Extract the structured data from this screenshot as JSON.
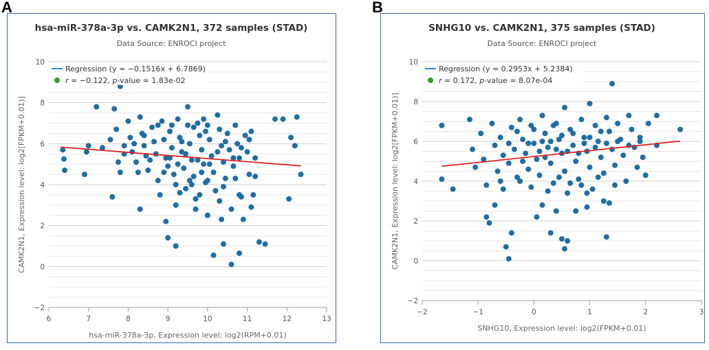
{
  "panels": [
    {
      "letter": "A",
      "chart_data": {
        "type": "scatter",
        "title": "hsa-miR-378a-3p vs. CAMK2N1, 372 samples (STAD)",
        "subtitle": "Data Source: ENROCI project",
        "xlabel": "hsa-miR-378a-3p, Expression level: log2(RPM+0.01)",
        "ylabel": "CAMK2N1, Expression level: log2[FPKM+0.01)]",
        "xlim": [
          6,
          13
        ],
        "ylim": [
          -2,
          10
        ],
        "xticks": [
          "6",
          "7",
          "8",
          "9",
          "10",
          "11",
          "12",
          "13"
        ],
        "yticks": [
          "−2",
          "0",
          "2",
          "4",
          "6",
          "8",
          "10"
        ],
        "legend": {
          "position": "top-left",
          "regression_label": "Regression (y = −0.1516x + 6.7869)",
          "r_prefix": "r",
          "r_suffix": " = −0.122, ",
          "p_prefix": "p",
          "p_suffix": "-value = 1.83e-02"
        },
        "regression": {
          "slope": -0.1516,
          "intercept": 6.7869,
          "x_range": [
            6.3,
            12.35
          ]
        },
        "colors": {
          "points": "#1f6ea3",
          "line": "#e02020",
          "legend_line": "#2b8ad3",
          "legend_dot": "#2ca02c",
          "grid": "#d8d8d8"
        },
        "points": [
          [
            6.35,
            5.7
          ],
          [
            6.38,
            5.25
          ],
          [
            6.4,
            4.7
          ],
          [
            6.9,
            4.5
          ],
          [
            6.95,
            5.6
          ],
          [
            7.2,
            7.8
          ],
          [
            7.6,
            3.4
          ],
          [
            7.65,
            7.7
          ],
          [
            7.8,
            8.8
          ],
          [
            7.7,
            6.7
          ],
          [
            7.75,
            5.1
          ],
          [
            7.8,
            4.6
          ],
          [
            7.9,
            5.5
          ],
          [
            8.0,
            7.1
          ],
          [
            8.05,
            6.3
          ],
          [
            8.1,
            5.6
          ],
          [
            8.2,
            5.1
          ],
          [
            8.25,
            4.6
          ],
          [
            8.3,
            2.8
          ],
          [
            8.3,
            7.3
          ],
          [
            8.35,
            6.5
          ],
          [
            8.4,
            5.9
          ],
          [
            8.45,
            5.4
          ],
          [
            8.5,
            4.7
          ],
          [
            8.6,
            6.8
          ],
          [
            8.65,
            6.1
          ],
          [
            8.7,
            5.5
          ],
          [
            8.75,
            4.2
          ],
          [
            8.8,
            3.5
          ],
          [
            8.85,
            7.1
          ],
          [
            8.9,
            6.2
          ],
          [
            8.95,
            5.3
          ],
          [
            8.95,
            2.2
          ],
          [
            9.0,
            1.4
          ],
          [
            9.0,
            4.9
          ],
          [
            9.05,
            6.6
          ],
          [
            9.1,
            5.8
          ],
          [
            9.15,
            4.5
          ],
          [
            9.2,
            3.0
          ],
          [
            9.2,
            1.0
          ],
          [
            9.25,
            7.2
          ],
          [
            9.3,
            6.3
          ],
          [
            9.35,
            5.6
          ],
          [
            9.4,
            4.8
          ],
          [
            9.45,
            3.8
          ],
          [
            9.5,
            7.8
          ],
          [
            9.5,
            6.9
          ],
          [
            9.55,
            6.0
          ],
          [
            9.6,
            5.2
          ],
          [
            9.65,
            4.4
          ],
          [
            9.7,
            3.3
          ],
          [
            9.7,
            2.8
          ],
          [
            9.75,
            7.0
          ],
          [
            9.8,
            6.4
          ],
          [
            9.85,
            5.7
          ],
          [
            9.9,
            5.0
          ],
          [
            9.95,
            4.1
          ],
          [
            10.0,
            6.9
          ],
          [
            10.0,
            2.5
          ],
          [
            10.05,
            6.2
          ],
          [
            10.1,
            5.4
          ],
          [
            10.15,
            4.6
          ],
          [
            10.15,
            0.55
          ],
          [
            10.2,
            3.7
          ],
          [
            10.25,
            7.4
          ],
          [
            10.3,
            6.7
          ],
          [
            10.35,
            5.9
          ],
          [
            10.35,
            2.3
          ],
          [
            10.4,
            5.1
          ],
          [
            10.4,
            1.1
          ],
          [
            10.45,
            4.3
          ],
          [
            10.5,
            6.5
          ],
          [
            10.55,
            5.7
          ],
          [
            10.6,
            2.8
          ],
          [
            10.6,
            0.1
          ],
          [
            10.65,
            4.9
          ],
          [
            10.7,
            6.9
          ],
          [
            10.75,
            6.0
          ],
          [
            10.8,
            5.3
          ],
          [
            10.8,
            0.65
          ],
          [
            10.85,
            3.4
          ],
          [
            10.9,
            2.3
          ],
          [
            10.95,
            6.4
          ],
          [
            11.0,
            5.6
          ],
          [
            11.05,
            4.5
          ],
          [
            11.1,
            6.6
          ],
          [
            11.15,
            3.5
          ],
          [
            11.2,
            5.3
          ],
          [
            11.3,
            1.2
          ],
          [
            11.45,
            1.1
          ],
          [
            11.7,
            7.2
          ],
          [
            11.9,
            7.2
          ],
          [
            12.05,
            3.3
          ],
          [
            12.1,
            6.3
          ],
          [
            12.2,
            5.9
          ],
          [
            12.25,
            7.3
          ],
          [
            12.35,
            4.5
          ],
          [
            7.55,
            6.2
          ],
          [
            8.15,
            6.0
          ],
          [
            8.55,
            5.2
          ],
          [
            8.75,
            6.9
          ],
          [
            9.05,
            5.3
          ],
          [
            9.25,
            5.0
          ],
          [
            9.35,
            6.1
          ],
          [
            9.45,
            5.5
          ],
          [
            9.55,
            4.2
          ],
          [
            9.65,
            6.8
          ],
          [
            9.75,
            5.2
          ],
          [
            9.85,
            4.6
          ],
          [
            9.95,
            6.6
          ],
          [
            10.05,
            5.0
          ],
          [
            10.25,
            5.6
          ],
          [
            10.45,
            6.1
          ],
          [
            10.65,
            5.3
          ],
          [
            10.85,
            5.8
          ],
          [
            11.05,
            6.2
          ],
          [
            9.2,
            4.0
          ],
          [
            9.6,
            4.0
          ],
          [
            10.0,
            4.2
          ],
          [
            10.4,
            3.9
          ],
          [
            9.1,
            6.9
          ],
          [
            9.9,
            7.2
          ],
          [
            10.7,
            4.3
          ],
          [
            11.2,
            4.4
          ],
          [
            7.35,
            5.8
          ],
          [
            7.0,
            5.9
          ],
          [
            7.9,
            5.9
          ],
          [
            8.4,
            6.4
          ],
          [
            8.9,
            4.6
          ],
          [
            9.3,
            3.6
          ],
          [
            9.8,
            3.5
          ],
          [
            10.3,
            3.2
          ],
          [
            10.8,
            3.5
          ],
          [
            11.1,
            2.9
          ]
        ]
      }
    },
    {
      "letter": "B",
      "chart_data": {
        "type": "scatter",
        "title": "SNHG10 vs. CAMK2N1, 375 samples (STAD)",
        "subtitle": "Data Source: ENROCI project",
        "xlabel": "SNHG10, Expression level: log2(FPKM+0.01)",
        "ylabel": "CAMK2N1, Expression level: log2[FPKM+0.01)]",
        "xlim": [
          -2,
          3
        ],
        "ylim": [
          -2,
          10
        ],
        "xticks": [
          "−2",
          "−1",
          "0",
          "1",
          "2",
          "3"
        ],
        "yticks": [
          "−2",
          "0",
          "2",
          "4",
          "6",
          "8",
          "10"
        ],
        "legend": {
          "position": "top-left",
          "regression_label": "Regression (y = 0.2953x + 5.2384)",
          "r_prefix": "r",
          "r_suffix": " = 0.172, ",
          "p_prefix": "p",
          "p_suffix": "-value = 8.07e-04"
        },
        "regression": {
          "slope": 0.2953,
          "intercept": 5.2384,
          "x_range": [
            -1.65,
            2.62
          ]
        },
        "colors": {
          "points": "#1f6ea3",
          "line": "#e02020",
          "legend_line": "#2b8ad3",
          "legend_dot": "#2ca02c",
          "grid": "#d8d8d8"
        },
        "points": [
          [
            -1.65,
            6.8
          ],
          [
            -1.65,
            4.1
          ],
          [
            -1.45,
            3.6
          ],
          [
            -1.15,
            7.1
          ],
          [
            -1.1,
            5.6
          ],
          [
            -1.05,
            4.7
          ],
          [
            -0.95,
            6.4
          ],
          [
            -0.9,
            5.1
          ],
          [
            -0.85,
            3.8
          ],
          [
            -0.85,
            2.2
          ],
          [
            -0.8,
            1.9
          ],
          [
            -0.75,
            6.9
          ],
          [
            -0.7,
            5.8
          ],
          [
            -0.7,
            2.8
          ],
          [
            -0.65,
            4.5
          ],
          [
            -0.6,
            6.2
          ],
          [
            -0.55,
            5.3
          ],
          [
            -0.55,
            3.6
          ],
          [
            -0.5,
            0.7
          ],
          [
            -0.45,
            0.1
          ],
          [
            -0.45,
            4.9
          ],
          [
            -0.4,
            6.7
          ],
          [
            -0.4,
            1.4
          ],
          [
            -0.35,
            5.6
          ],
          [
            -0.3,
            4.2
          ],
          [
            -0.25,
            7.1
          ],
          [
            -0.2,
            6.1
          ],
          [
            -0.15,
            5.4
          ],
          [
            -0.1,
            4.6
          ],
          [
            -0.05,
            3.7
          ],
          [
            -0.05,
            6.8
          ],
          [
            0.0,
            5.9
          ],
          [
            0.05,
            5.1
          ],
          [
            0.1,
            4.3
          ],
          [
            0.15,
            7.3
          ],
          [
            0.15,
            2.8
          ],
          [
            0.2,
            6.4
          ],
          [
            0.25,
            5.7
          ],
          [
            0.3,
            4.9
          ],
          [
            0.3,
            1.4
          ],
          [
            0.35,
            3.9
          ],
          [
            0.4,
            6.9
          ],
          [
            0.45,
            6.1
          ],
          [
            0.5,
            5.4
          ],
          [
            0.5,
            1.1
          ],
          [
            0.55,
            4.5
          ],
          [
            0.55,
            0.6
          ],
          [
            0.55,
            7.7
          ],
          [
            0.6,
            3.4
          ],
          [
            0.6,
            1.0
          ],
          [
            0.65,
            6.6
          ],
          [
            0.7,
            5.8
          ],
          [
            0.75,
            5.0
          ],
          [
            0.75,
            2.5
          ],
          [
            0.8,
            4.1
          ],
          [
            0.85,
            7.1
          ],
          [
            0.9,
            6.2
          ],
          [
            0.95,
            5.5
          ],
          [
            0.95,
            2.7
          ],
          [
            1.0,
            4.7
          ],
          [
            1.0,
            7.9
          ],
          [
            1.05,
            3.6
          ],
          [
            1.1,
            6.8
          ],
          [
            1.15,
            6.0
          ],
          [
            1.2,
            5.2
          ],
          [
            1.25,
            4.4
          ],
          [
            1.3,
            7.2
          ],
          [
            1.3,
            1.2
          ],
          [
            1.35,
            6.5
          ],
          [
            1.35,
            2.9
          ],
          [
            1.4,
            5.6
          ],
          [
            1.4,
            8.9
          ],
          [
            1.45,
            4.8
          ],
          [
            1.5,
            6.9
          ],
          [
            1.55,
            6.1
          ],
          [
            1.6,
            5.3
          ],
          [
            1.65,
            4.0
          ],
          [
            1.7,
            7.3
          ],
          [
            1.75,
            6.6
          ],
          [
            1.8,
            5.7
          ],
          [
            1.85,
            4.7
          ],
          [
            1.9,
            6.2
          ],
          [
            1.95,
            5.2
          ],
          [
            2.0,
            4.3
          ],
          [
            2.05,
            6.9
          ],
          [
            2.2,
            7.3
          ],
          [
            2.2,
            5.8
          ],
          [
            2.62,
            6.6
          ],
          [
            -0.3,
            6.5
          ],
          [
            -0.2,
            5.0
          ],
          [
            -0.1,
            5.9
          ],
          [
            0.0,
            6.6
          ],
          [
            0.1,
            5.5
          ],
          [
            0.2,
            5.2
          ],
          [
            0.3,
            6.0
          ],
          [
            0.4,
            5.6
          ],
          [
            0.5,
            6.3
          ],
          [
            0.6,
            5.5
          ],
          [
            0.7,
            6.4
          ],
          [
            0.8,
            5.4
          ],
          [
            0.9,
            5.9
          ],
          [
            1.0,
            6.2
          ],
          [
            1.1,
            5.7
          ],
          [
            1.2,
            6.5
          ],
          [
            1.3,
            5.9
          ],
          [
            1.5,
            6.0
          ],
          [
            1.7,
            5.8
          ],
          [
            1.9,
            6.0
          ],
          [
            0.35,
            6.8
          ],
          [
            0.15,
            6.0
          ],
          [
            -0.45,
            5.9
          ],
          [
            -0.25,
            4.0
          ],
          [
            0.45,
            4.2
          ],
          [
            0.85,
            3.8
          ],
          [
            0.25,
            3.5
          ],
          [
            0.65,
            3.9
          ],
          [
            1.15,
            4.2
          ],
          [
            -0.6,
            4.0
          ],
          [
            0.05,
            2.2
          ],
          [
            0.4,
            2.5
          ],
          [
            1.45,
            3.8
          ],
          [
            0.95,
            3.4
          ],
          [
            1.25,
            3.0
          ]
        ]
      }
    }
  ]
}
